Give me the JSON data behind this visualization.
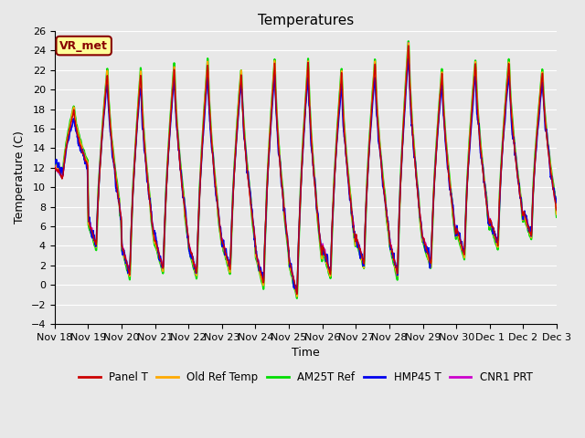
{
  "title": "Temperatures",
  "xlabel": "Time",
  "ylabel": "Temperature (C)",
  "ylim": [
    -4,
    26
  ],
  "yticks": [
    -4,
    -2,
    0,
    2,
    4,
    6,
    8,
    10,
    12,
    14,
    16,
    18,
    20,
    22,
    24,
    26
  ],
  "xtick_labels": [
    "Nov 18",
    "Nov 19",
    "Nov 20",
    "Nov 21",
    "Nov 22",
    "Nov 23",
    "Nov 24",
    "Nov 25",
    "Nov 26",
    "Nov 27",
    "Nov 28",
    "Nov 29",
    "Nov 30",
    "Dec 1",
    "Dec 2",
    "Dec 3"
  ],
  "series_order": [
    "AM25T Ref",
    "CNR1 PRT",
    "Old Ref Temp",
    "HMP45 T",
    "Panel T"
  ],
  "series": {
    "Panel T": {
      "color": "#cc0000",
      "lw": 1.0
    },
    "Old Ref Temp": {
      "color": "#ffaa00",
      "lw": 1.2
    },
    "AM25T Ref": {
      "color": "#00dd00",
      "lw": 1.5
    },
    "HMP45 T": {
      "color": "#0000ee",
      "lw": 1.2
    },
    "CNR1 PRT": {
      "color": "#cc00cc",
      "lw": 1.0
    }
  },
  "legend_order": [
    "Panel T",
    "Old Ref Temp",
    "AM25T Ref",
    "HMP45 T",
    "CNR1 PRT"
  ],
  "annotation_text": "VR_met",
  "annotation_color": "#880000",
  "annotation_bg": "#ffff99",
  "background_color": "#e8e8e8",
  "plot_bg": "#e8e8e8",
  "grid_color": "#ffffff"
}
